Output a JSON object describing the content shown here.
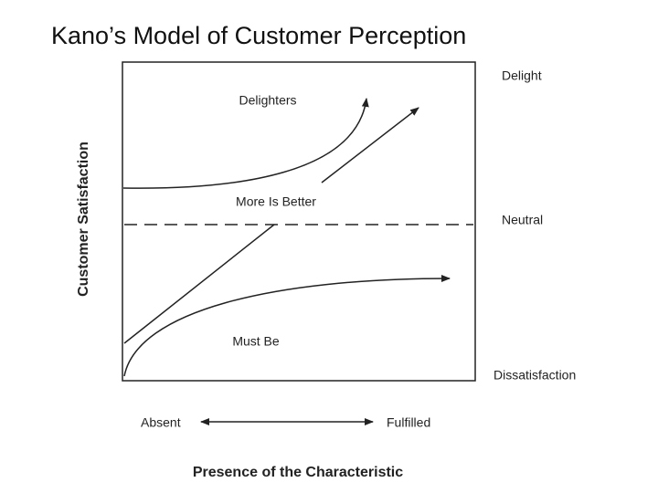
{
  "header": {
    "title": "Kano’s Model of Customer Perception"
  },
  "diagram": {
    "y_axis_label": "Customer Satisfaction",
    "x_axis_label": "Presence of the Characteristic",
    "x_axis_ends": [
      "Absent",
      "Fulfilled"
    ],
    "levels": [
      "Delight",
      "Neutral",
      "Dissatisfaction"
    ],
    "curves": [
      "Delighters",
      "More Is Better",
      "Must Be"
    ]
  }
}
